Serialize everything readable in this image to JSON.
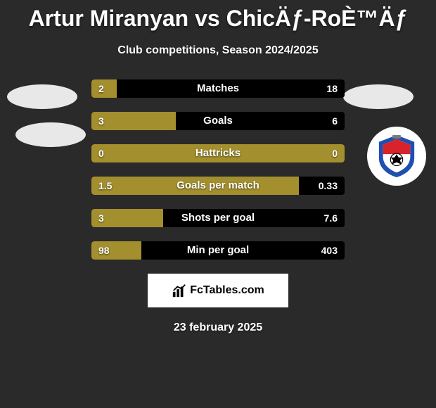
{
  "title": "Artur Miranyan vs ChicÄƒ-RoÈ™Äƒ",
  "subtitle": "Club competitions, Season 2024/2025",
  "date": "23 february 2025",
  "footer_brand": "FcTables.com",
  "colors": {
    "left": "#a38f2d",
    "right": "#000000",
    "background": "#2a2a2a",
    "avatar_bg": "#e8e8e8",
    "footer_bg": "#ffffff"
  },
  "club_badge": {
    "ring_color": "#1f4fb0",
    "center_top": "#d8232a",
    "center_bottom": "#ffffff",
    "text_color": "#ffffff"
  },
  "stats": [
    {
      "label": "Matches",
      "left_val": "2",
      "right_val": "18",
      "left_pct": 10.0,
      "right_pct": 90.0
    },
    {
      "label": "Goals",
      "left_val": "3",
      "right_val": "6",
      "left_pct": 33.3,
      "right_pct": 66.7
    },
    {
      "label": "Hattricks",
      "left_val": "0",
      "right_val": "0",
      "left_pct": 100.0,
      "right_pct": 0.0
    },
    {
      "label": "Goals per match",
      "left_val": "1.5",
      "right_val": "0.33",
      "left_pct": 82.0,
      "right_pct": 18.0
    },
    {
      "label": "Shots per goal",
      "left_val": "3",
      "right_val": "7.6",
      "left_pct": 28.3,
      "right_pct": 71.7
    },
    {
      "label": "Min per goal",
      "left_val": "98",
      "right_val": "403",
      "left_pct": 19.6,
      "right_pct": 80.4
    }
  ]
}
